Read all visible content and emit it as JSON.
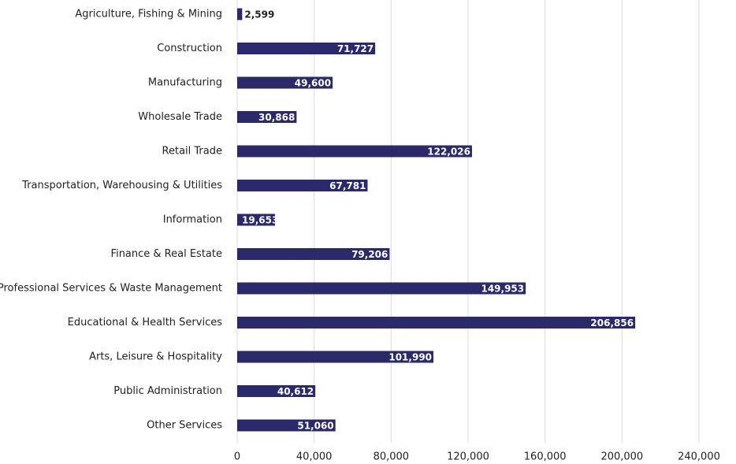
{
  "chart_data": {
    "type": "barh",
    "categories": [
      "Agriculture, Fishing & Mining",
      "Construction",
      "Manufacturing",
      "Wholesale Trade",
      "Retail Trade",
      "Transportation, Warehousing & Utilities",
      "Information",
      "Finance & Real Estate",
      "Professional Services & Waste Management",
      "Educational & Health Services",
      "Arts, Leisure & Hospitality",
      "Public Administration",
      "Other Services"
    ],
    "values": [
      2599,
      71727,
      49600,
      30868,
      122026,
      67781,
      19653,
      79206,
      149953,
      206856,
      101990,
      40612,
      51060
    ],
    "value_labels": [
      "2,599",
      "71,727",
      "49,600",
      "30,868",
      "122,026",
      "67,781",
      "19,653",
      "79,206",
      "149,953",
      "206,856",
      "101,990",
      "40,612",
      "51,060"
    ],
    "color": "#2a2a6b",
    "xlim": [
      0,
      240000
    ],
    "xticks": [
      0,
      {
        "value": 40000,
        "label": "40,000"
      },
      {
        "value": 80000,
        "label": "80,000"
      },
      {
        "value": 120000,
        "label": "120,000"
      },
      {
        "value": 160000,
        "label": "160,000"
      },
      {
        "value": 200000,
        "label": "200,000"
      },
      {
        "value": 240000,
        "label": "240,000"
      }
    ],
    "grid": true
  }
}
